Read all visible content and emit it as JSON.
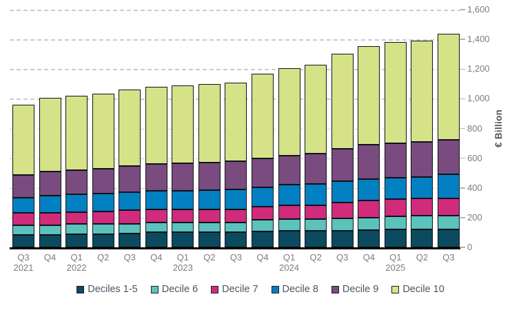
{
  "chart_data": {
    "type": "bar",
    "stacked": true,
    "title": "",
    "categories": [
      "Q3 2021",
      "Q4 2021",
      "Q1 2022",
      "Q2 2022",
      "Q3 2022",
      "Q4 2022",
      "Q1 2023",
      "Q2 2023",
      "Q3 2023",
      "Q4 2023",
      "Q1 2024",
      "Q2 2024",
      "Q3 2024",
      "Q4 2024",
      "Q1 2025",
      "Q2 2025",
      "Q3 2025"
    ],
    "x_tick_labels": [
      {
        "quarter": "Q3",
        "year": "2021"
      },
      {
        "quarter": "Q4",
        "year": ""
      },
      {
        "quarter": "Q1",
        "year": "2022"
      },
      {
        "quarter": "Q2",
        "year": ""
      },
      {
        "quarter": "Q3",
        "year": ""
      },
      {
        "quarter": "Q4",
        "year": ""
      },
      {
        "quarter": "Q1",
        "year": "2023"
      },
      {
        "quarter": "Q2",
        "year": ""
      },
      {
        "quarter": "Q3",
        "year": ""
      },
      {
        "quarter": "Q4",
        "year": ""
      },
      {
        "quarter": "Q1",
        "year": "2024"
      },
      {
        "quarter": "Q2",
        "year": ""
      },
      {
        "quarter": "Q3",
        "year": ""
      },
      {
        "quarter": "Q4",
        "year": ""
      },
      {
        "quarter": "Q1",
        "year": "2025"
      },
      {
        "quarter": "Q2",
        "year": ""
      },
      {
        "quarter": "Q3",
        "year": ""
      }
    ],
    "series": [
      {
        "name": "Deciles 1-5",
        "color": "#0C4A60",
        "values": [
          85,
          85,
          90,
          90,
          95,
          100,
          100,
          100,
          100,
          105,
          110,
          110,
          110,
          115,
          120,
          120,
          120
        ]
      },
      {
        "name": "Decile 6",
        "color": "#5BC2BC",
        "values": [
          65,
          65,
          70,
          70,
          65,
          65,
          65,
          65,
          65,
          80,
          80,
          80,
          85,
          85,
          90,
          95,
          95
        ]
      },
      {
        "name": "Decile 7",
        "color": "#D02C7B",
        "values": [
          80,
          80,
          75,
          80,
          90,
          90,
          90,
          90,
          90,
          90,
          95,
          95,
          105,
          115,
          115,
          115,
          115
        ]
      },
      {
        "name": "Decile 8",
        "color": "#0380C2",
        "values": [
          105,
          120,
          120,
          120,
          120,
          125,
          125,
          130,
          135,
          130,
          135,
          140,
          145,
          145,
          145,
          145,
          160
        ]
      },
      {
        "name": "Decile 9",
        "color": "#7A4B7E",
        "values": [
          150,
          160,
          165,
          170,
          175,
          180,
          185,
          185,
          190,
          195,
          195,
          205,
          220,
          230,
          230,
          235,
          235
        ]
      },
      {
        "name": "Decile 10",
        "color": "#D5E288",
        "values": [
          475,
          495,
          500,
          505,
          515,
          520,
          525,
          530,
          530,
          570,
          590,
          600,
          640,
          665,
          680,
          680,
          715
        ]
      }
    ],
    "totals": [
      960,
      1005,
      1020,
      1035,
      1060,
      1080,
      1090,
      1100,
      1110,
      1170,
      1205,
      1230,
      1305,
      1355,
      1380,
      1390,
      1440
    ],
    "ylabel": "€ Billion",
    "ylim": [
      0,
      1600
    ],
    "y_ticks": [
      {
        "value": 0,
        "label": "0"
      },
      {
        "value": 200,
        "label": "200"
      },
      {
        "value": 400,
        "label": "400"
      },
      {
        "value": 600,
        "label": "600"
      },
      {
        "value": 800,
        "label": "800"
      },
      {
        "value": 1000,
        "label": "1,000"
      },
      {
        "value": 1200,
        "label": "1,200"
      },
      {
        "value": 1400,
        "label": "1,400"
      },
      {
        "value": 1600,
        "label": "1,600"
      }
    ],
    "grid": "horizontal-dashed",
    "legend_position": "bottom"
  },
  "colors": {
    "background": "#ffffff",
    "gridline": "#cbcbcb",
    "axis_line": "#000000",
    "tick_mark": "#b3b3b3",
    "axis_text": "#7b7b7b",
    "y_title_text": "#555555",
    "legend_text": "#4b5661",
    "bar_border": "#0e1219"
  }
}
